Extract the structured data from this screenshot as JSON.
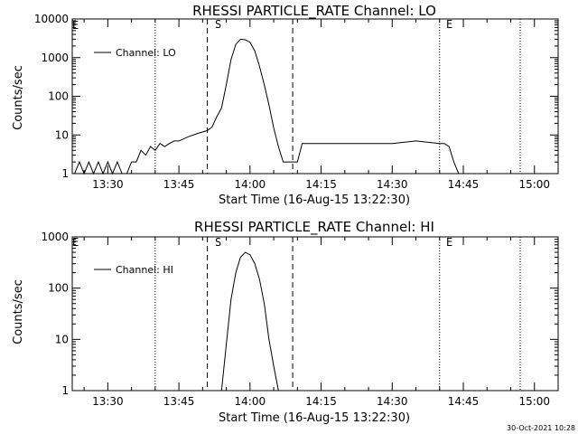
{
  "footer_timestamp": "30-Oct-2021 10:28",
  "chart_data": [
    {
      "type": "line",
      "title": "RHESSI PARTICLE_RATE Channel: LO",
      "xlabel": "Start Time (16-Aug-15 13:22:30)",
      "ylabel": "Counts/sec",
      "y_scale": "log",
      "ylim": [
        1,
        10000
      ],
      "y_ticks": [
        "1",
        "10",
        "100",
        "1000",
        "10000"
      ],
      "xlim": [
        "13:22:30",
        "15:05:00"
      ],
      "x_ticks": [
        "13:30",
        "13:45",
        "14:00",
        "14:15",
        "14:30",
        "14:45",
        "15:00"
      ],
      "legend_position": "top-left",
      "series": [
        {
          "name": "Channel: LO",
          "x": [
            "13:23",
            "13:24",
            "13:25",
            "13:26",
            "13:27",
            "13:28",
            "13:29",
            "13:30",
            "13:31",
            "13:32",
            "13:33",
            "13:34",
            "13:35",
            "13:36",
            "13:37",
            "13:38",
            "13:39",
            "13:40",
            "13:41",
            "13:42",
            "13:43",
            "13:44",
            "13:45",
            "13:47",
            "13:49",
            "13:51",
            "13:52",
            "13:53",
            "13:54",
            "13:55",
            "13:56",
            "13:57",
            "13:58",
            "13:59",
            "14:00",
            "14:01",
            "14:02",
            "14:03",
            "14:04",
            "14:05",
            "14:06",
            "14:07",
            "14:08",
            "14:09",
            "14:10",
            "14:11",
            "14:12",
            "14:15",
            "14:20",
            "14:25",
            "14:30",
            "14:35",
            "14:40",
            "14:41",
            "14:42",
            "14:43",
            "14:44",
            "14:45",
            "14:50",
            "14:55",
            "15:00",
            "15:04"
          ],
          "values": [
            1,
            2,
            1,
            2,
            1,
            2,
            1,
            2,
            1,
            2,
            1,
            1,
            2,
            2,
            4,
            3,
            5,
            4,
            6,
            5,
            6,
            7,
            7,
            9,
            11,
            13,
            16,
            30,
            50,
            200,
            900,
            2200,
            3000,
            2900,
            2500,
            1500,
            600,
            200,
            60,
            15,
            5,
            2,
            2,
            2,
            2,
            6,
            6,
            6,
            6,
            6,
            6,
            7,
            6,
            6,
            5,
            2,
            1,
            1,
            1,
            1,
            1,
            1
          ]
        }
      ],
      "annotations": [
        "E",
        "S",
        "E"
      ]
    },
    {
      "type": "line",
      "title": "RHESSI PARTICLE_RATE Channel: HI",
      "xlabel": "Start Time (16-Aug-15 13:22:30)",
      "ylabel": "Counts/sec",
      "y_scale": "log",
      "ylim": [
        1,
        1000
      ],
      "y_ticks": [
        "1",
        "10",
        "100",
        "1000"
      ],
      "xlim": [
        "13:22:30",
        "15:05:00"
      ],
      "x_ticks": [
        "13:30",
        "13:45",
        "14:00",
        "14:15",
        "14:30",
        "14:45",
        "15:00"
      ],
      "legend_position": "top-left",
      "series": [
        {
          "name": "Channel: HI",
          "x": [
            "13:54",
            "13:55",
            "13:56",
            "13:57",
            "13:58",
            "13:59",
            "14:00",
            "14:01",
            "14:02",
            "14:03",
            "14:04",
            "14:05",
            "14:06"
          ],
          "values": [
            1,
            8,
            60,
            200,
            400,
            500,
            450,
            300,
            150,
            50,
            10,
            3,
            1
          ]
        }
      ],
      "annotations": [
        "E",
        "S",
        "E"
      ]
    }
  ]
}
